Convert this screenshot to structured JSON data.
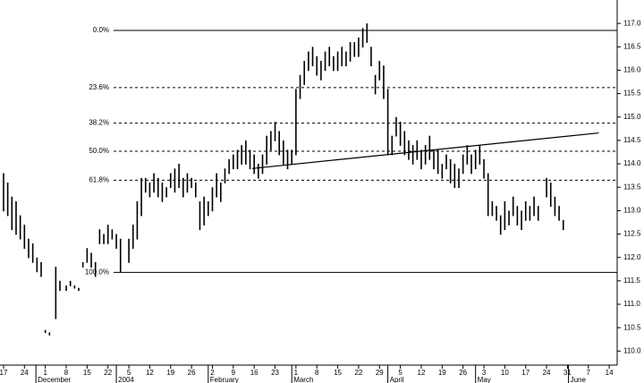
{
  "chart_data": {
    "type": "ohlc",
    "color": "#000000",
    "xlim": [
      -0.17,
      29.38
    ],
    "ylim": [
      109.7,
      117.5
    ],
    "xticks": [
      {
        "value": 0,
        "label": "17"
      },
      {
        "value": 1,
        "label": "24"
      },
      {
        "value": 2,
        "label": "1"
      },
      {
        "value": 3,
        "label": "8"
      },
      {
        "value": 4,
        "label": "15"
      },
      {
        "value": 5,
        "label": "22"
      },
      {
        "value": 6,
        "label": "5"
      },
      {
        "value": 7,
        "label": "12"
      },
      {
        "value": 8,
        "label": "19"
      },
      {
        "value": 9,
        "label": "26"
      },
      {
        "value": 10,
        "label": "2"
      },
      {
        "value": 11,
        "label": "9"
      },
      {
        "value": 12,
        "label": "16"
      },
      {
        "value": 13,
        "label": "23"
      },
      {
        "value": 14,
        "label": "1"
      },
      {
        "value": 15,
        "label": "8"
      },
      {
        "value": 16,
        "label": "15"
      },
      {
        "value": 17,
        "label": "22"
      },
      {
        "value": 18,
        "label": "29"
      },
      {
        "value": 19,
        "label": "5"
      },
      {
        "value": 20,
        "label": "12"
      },
      {
        "value": 21,
        "label": "19"
      },
      {
        "value": 22,
        "label": "26"
      },
      {
        "value": 23,
        "label": "3"
      },
      {
        "value": 24,
        "label": "10"
      },
      {
        "value": 25,
        "label": "17"
      },
      {
        "value": 26,
        "label": "24"
      },
      {
        "value": 27,
        "label": "31"
      },
      {
        "value": 28,
        "label": "7"
      },
      {
        "value": 29,
        "label": "14"
      }
    ],
    "month_labels": [
      {
        "value": 1.55,
        "label": "December"
      },
      {
        "value": 5.4,
        "label": "2004"
      },
      {
        "value": 9.8,
        "label": "February"
      },
      {
        "value": 13.8,
        "label": "March"
      },
      {
        "value": 18.4,
        "label": "April"
      },
      {
        "value": 22.6,
        "label": "May"
      },
      {
        "value": 27.05,
        "label": "June"
      }
    ],
    "yticks": [
      {
        "value": 110,
        "label": "110.0"
      },
      110.5,
      {
        "value": 111,
        "label": "111.0"
      },
      111.5,
      {
        "value": 112,
        "label": "112.0"
      },
      112.5,
      {
        "value": 113,
        "label": "113.0"
      },
      113.5,
      {
        "value": 114,
        "label": "114.0"
      },
      114.5,
      {
        "value": 115,
        "label": "115.0"
      },
      115.5,
      {
        "value": 116,
        "label": "116.0"
      },
      116.5,
      {
        "value": 117,
        "label": "117.0"
      }
    ],
    "fib_levels": [
      {
        "value": 116.85,
        "label": "0.0%",
        "style": "solid"
      },
      {
        "value": 115.63,
        "label": "23.6%",
        "style": "dashed"
      },
      {
        "value": 114.87,
        "label": "38.2%",
        "style": "dashed"
      },
      {
        "value": 114.27,
        "label": "50.0%",
        "style": "dashed"
      },
      {
        "value": 113.65,
        "label": "61.8%",
        "style": "dashed"
      },
      {
        "value": 111.68,
        "label": "100.0%",
        "style": "solid"
      }
    ],
    "trendline": {
      "x": [
        11.9,
        28.5
      ],
      "y": [
        113.9,
        114.66
      ]
    },
    "bars": [
      {
        "x": 0,
        "high": 113.8,
        "low": 113.0
      },
      {
        "x": 0.2,
        "high": 113.6,
        "low": 112.9
      },
      {
        "x": 0.4,
        "high": 113.3,
        "low": 112.6
      },
      {
        "x": 0.6,
        "high": 113.2,
        "low": 112.5
      },
      {
        "x": 0.8,
        "high": 112.9,
        "low": 112.4
      },
      {
        "x": 1,
        "high": 112.7,
        "low": 112.2
      },
      {
        "x": 1.2,
        "high": 112.4,
        "low": 112.0
      },
      {
        "x": 1.4,
        "high": 112.3,
        "low": 111.9
      },
      {
        "x": 1.6,
        "high": 112.0,
        "low": 111.7
      },
      {
        "x": 1.8,
        "high": 111.9,
        "low": 111.6
      },
      {
        "x": 2,
        "high": 110.45,
        "low": 110.4
      },
      {
        "x": 2.2,
        "high": 110.4,
        "low": 110.35
      },
      {
        "x": 2.5,
        "high": 111.8,
        "low": 110.7
      },
      {
        "x": 2.7,
        "high": 111.5,
        "low": 111.3
      },
      {
        "x": 3,
        "high": 111.4,
        "low": 111.3
      },
      {
        "x": 3.2,
        "high": 111.5,
        "low": 111.4
      },
      {
        "x": 3.4,
        "high": 111.4,
        "low": 111.35
      },
      {
        "x": 3.6,
        "high": 111.35,
        "low": 111.3
      },
      {
        "x": 3.8,
        "high": 111.9,
        "low": 111.8
      },
      {
        "x": 4,
        "high": 112.2,
        "low": 111.9
      },
      {
        "x": 4.2,
        "high": 112.1,
        "low": 111.8
      },
      {
        "x": 4.4,
        "high": 111.9,
        "low": 111.6
      },
      {
        "x": 4.6,
        "high": 112.6,
        "low": 112.3
      },
      {
        "x": 4.8,
        "high": 112.5,
        "low": 112.3
      },
      {
        "x": 5,
        "high": 112.7,
        "low": 112.3
      },
      {
        "x": 5.2,
        "high": 112.6,
        "low": 112.4
      },
      {
        "x": 5.4,
        "high": 112.5,
        "low": 112.2
      },
      {
        "x": 5.6,
        "high": 112.4,
        "low": 111.7
      },
      {
        "x": 6,
        "high": 112.4,
        "low": 111.9
      },
      {
        "x": 6.2,
        "high": 112.7,
        "low": 112.2
      },
      {
        "x": 6.4,
        "high": 113.2,
        "low": 112.4
      },
      {
        "x": 6.6,
        "high": 113.7,
        "low": 112.9
      },
      {
        "x": 6.8,
        "high": 113.7,
        "low": 113.4
      },
      {
        "x": 7,
        "high": 113.6,
        "low": 113.3
      },
      {
        "x": 7.2,
        "high": 113.8,
        "low": 113.4
      },
      {
        "x": 7.4,
        "high": 113.7,
        "low": 113.3
      },
      {
        "x": 7.6,
        "high": 113.6,
        "low": 113.2
      },
      {
        "x": 7.8,
        "high": 113.5,
        "low": 113.3
      },
      {
        "x": 8,
        "high": 113.8,
        "low": 113.5
      },
      {
        "x": 8.2,
        "high": 113.9,
        "low": 113.4
      },
      {
        "x": 8.4,
        "high": 114.0,
        "low": 113.5
      },
      {
        "x": 8.6,
        "high": 113.7,
        "low": 113.3
      },
      {
        "x": 8.8,
        "high": 113.8,
        "low": 113.4
      },
      {
        "x": 9,
        "high": 113.7,
        "low": 113.5
      },
      {
        "x": 9.2,
        "high": 113.6,
        "low": 113.3
      },
      {
        "x": 9.4,
        "high": 113.2,
        "low": 112.6
      },
      {
        "x": 9.6,
        "high": 113.3,
        "low": 112.7
      },
      {
        "x": 9.8,
        "high": 113.2,
        "low": 112.9
      },
      {
        "x": 10,
        "high": 113.5,
        "low": 113.0
      },
      {
        "x": 10.2,
        "high": 113.8,
        "low": 113.3
      },
      {
        "x": 10.4,
        "high": 113.6,
        "low": 113.2
      },
      {
        "x": 10.6,
        "high": 113.9,
        "low": 113.6
      },
      {
        "x": 10.8,
        "high": 114.1,
        "low": 113.8
      },
      {
        "x": 11,
        "high": 114.2,
        "low": 113.9
      },
      {
        "x": 11.2,
        "high": 114.3,
        "low": 113.9
      },
      {
        "x": 11.4,
        "high": 114.4,
        "low": 114.0
      },
      {
        "x": 11.6,
        "high": 114.5,
        "low": 114.0
      },
      {
        "x": 11.8,
        "high": 114.3,
        "low": 113.9
      },
      {
        "x": 12,
        "high": 114.2,
        "low": 113.8
      },
      {
        "x": 12.2,
        "high": 114.0,
        "low": 113.7
      },
      {
        "x": 12.4,
        "high": 114.2,
        "low": 113.8
      },
      {
        "x": 12.6,
        "high": 114.6,
        "low": 114.0
      },
      {
        "x": 12.8,
        "high": 114.7,
        "low": 114.3
      },
      {
        "x": 13,
        "high": 114.9,
        "low": 114.5
      },
      {
        "x": 13.2,
        "high": 114.7,
        "low": 114.2
      },
      {
        "x": 13.4,
        "high": 114.5,
        "low": 114.0
      },
      {
        "x": 13.6,
        "high": 114.3,
        "low": 113.9
      },
      {
        "x": 13.8,
        "high": 114.3,
        "low": 114.0
      },
      {
        "x": 14,
        "high": 115.6,
        "low": 114.2
      },
      {
        "x": 14.2,
        "high": 115.9,
        "low": 115.4
      },
      {
        "x": 14.4,
        "high": 116.2,
        "low": 115.7
      },
      {
        "x": 14.6,
        "high": 116.4,
        "low": 116.0
      },
      {
        "x": 14.8,
        "high": 116.5,
        "low": 116.1
      },
      {
        "x": 15,
        "high": 116.3,
        "low": 115.9
      },
      {
        "x": 15.2,
        "high": 116.2,
        "low": 115.8
      },
      {
        "x": 15.4,
        "high": 116.4,
        "low": 116.0
      },
      {
        "x": 15.6,
        "high": 116.5,
        "low": 116.1
      },
      {
        "x": 15.8,
        "high": 116.3,
        "low": 116.0
      },
      {
        "x": 16,
        "high": 116.4,
        "low": 116.0
      },
      {
        "x": 16.2,
        "high": 116.5,
        "low": 116.1
      },
      {
        "x": 16.4,
        "high": 116.4,
        "low": 116.1
      },
      {
        "x": 16.6,
        "high": 116.6,
        "low": 116.2
      },
      {
        "x": 16.8,
        "high": 116.6,
        "low": 116.3
      },
      {
        "x": 17,
        "high": 116.7,
        "low": 116.3
      },
      {
        "x": 17.2,
        "high": 116.9,
        "low": 116.5
      },
      {
        "x": 17.4,
        "high": 117.0,
        "low": 116.6
      },
      {
        "x": 17.6,
        "high": 116.5,
        "low": 116.1
      },
      {
        "x": 17.8,
        "high": 115.9,
        "low": 115.5
      },
      {
        "x": 18,
        "high": 116.2,
        "low": 115.8
      },
      {
        "x": 18.2,
        "high": 116.1,
        "low": 115.4
      },
      {
        "x": 18.4,
        "high": 115.6,
        "low": 114.2
      },
      {
        "x": 18.6,
        "high": 114.6,
        "low": 114.2
      },
      {
        "x": 18.8,
        "high": 115.0,
        "low": 114.6
      },
      {
        "x": 19,
        "high": 114.9,
        "low": 114.4
      },
      {
        "x": 19.2,
        "high": 114.7,
        "low": 114.2
      },
      {
        "x": 19.4,
        "high": 114.5,
        "low": 114.1
      },
      {
        "x": 19.6,
        "high": 114.4,
        "low": 114.0
      },
      {
        "x": 19.8,
        "high": 114.5,
        "low": 114.1
      },
      {
        "x": 20,
        "high": 114.3,
        "low": 113.9
      },
      {
        "x": 20.2,
        "high": 114.4,
        "low": 114.0
      },
      {
        "x": 20.4,
        "high": 114.6,
        "low": 114.1
      },
      {
        "x": 20.6,
        "high": 114.3,
        "low": 113.9
      },
      {
        "x": 20.8,
        "high": 114.3,
        "low": 113.8
      },
      {
        "x": 21,
        "high": 114.0,
        "low": 113.7
      },
      {
        "x": 21.2,
        "high": 114.2,
        "low": 113.9
      },
      {
        "x": 21.4,
        "high": 114.1,
        "low": 113.6
      },
      {
        "x": 21.6,
        "high": 114.0,
        "low": 113.5
      },
      {
        "x": 21.8,
        "high": 113.9,
        "low": 113.5
      },
      {
        "x": 22,
        "high": 114.2,
        "low": 113.8
      },
      {
        "x": 22.2,
        "high": 114.4,
        "low": 114.0
      },
      {
        "x": 22.4,
        "high": 114.2,
        "low": 113.8
      },
      {
        "x": 22.6,
        "high": 114.3,
        "low": 113.9
      },
      {
        "x": 22.8,
        "high": 114.4,
        "low": 114.0
      },
      {
        "x": 23,
        "high": 114.1,
        "low": 113.7
      },
      {
        "x": 23.2,
        "high": 113.8,
        "low": 112.9
      },
      {
        "x": 23.4,
        "high": 113.2,
        "low": 112.9
      },
      {
        "x": 23.6,
        "high": 113.1,
        "low": 112.8
      },
      {
        "x": 23.8,
        "high": 112.9,
        "low": 112.5
      },
      {
        "x": 24,
        "high": 113.2,
        "low": 112.6
      },
      {
        "x": 24.2,
        "high": 113.0,
        "low": 112.7
      },
      {
        "x": 24.4,
        "high": 113.3,
        "low": 112.9
      },
      {
        "x": 24.6,
        "high": 113.1,
        "low": 112.7
      },
      {
        "x": 24.8,
        "high": 113.0,
        "low": 112.6
      },
      {
        "x": 25,
        "high": 113.2,
        "low": 112.8
      },
      {
        "x": 25.2,
        "high": 113.1,
        "low": 112.8
      },
      {
        "x": 25.4,
        "high": 113.3,
        "low": 112.9
      },
      {
        "x": 25.6,
        "high": 113.1,
        "low": 112.8
      },
      {
        "x": 26,
        "high": 113.7,
        "low": 113.3
      },
      {
        "x": 26.2,
        "high": 113.6,
        "low": 113.1
      },
      {
        "x": 26.4,
        "high": 113.3,
        "low": 112.9
      },
      {
        "x": 26.6,
        "high": 113.1,
        "low": 112.8
      },
      {
        "x": 26.8,
        "high": 112.8,
        "low": 112.6
      }
    ]
  }
}
